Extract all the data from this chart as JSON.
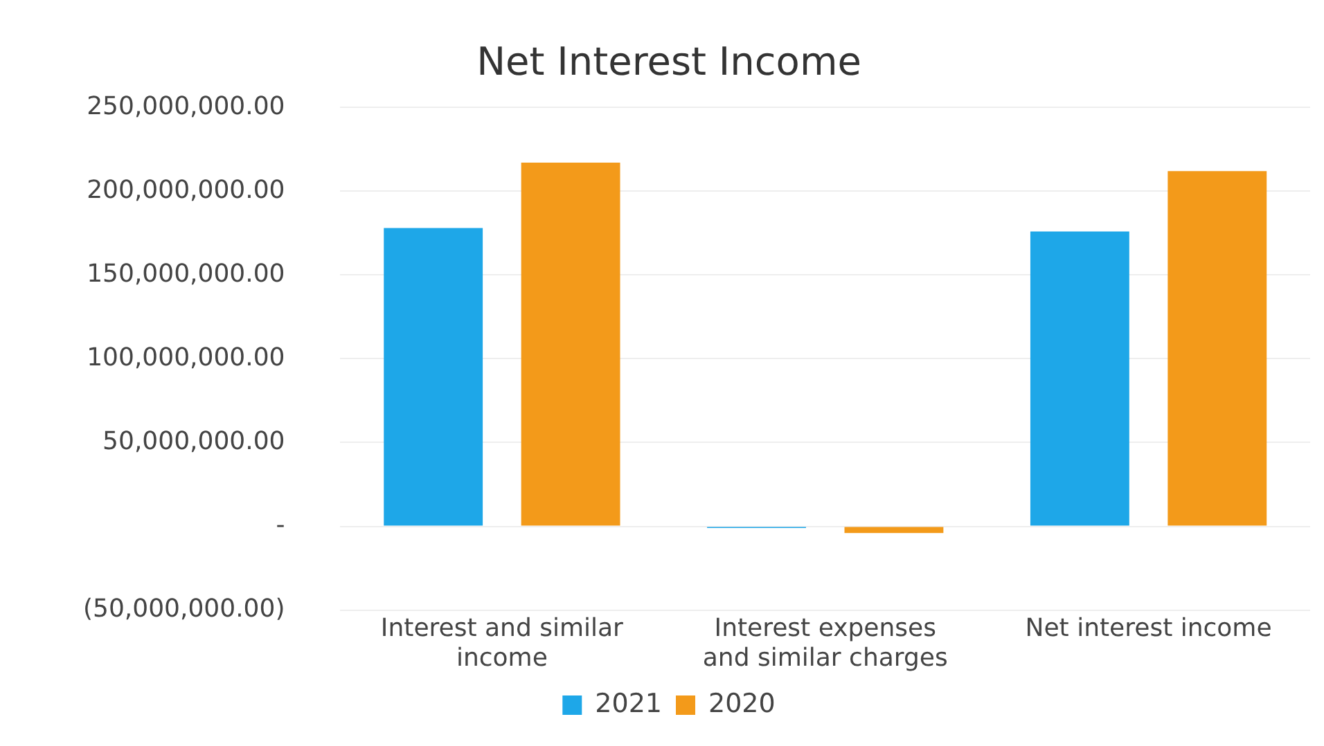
{
  "chart_data": {
    "type": "bar",
    "title": "Net Interest Income",
    "categories": [
      "Interest and similar income",
      "Interest expenses and similar charges",
      "Net interest income"
    ],
    "series": [
      {
        "name": "2021",
        "color": "#1ea7e8",
        "values": [
          178000000,
          -1000000,
          176000000
        ]
      },
      {
        "name": "2020",
        "color": "#f39a1a",
        "values": [
          217000000,
          -4000000,
          212000000
        ]
      }
    ],
    "ylim": [
      -50000000,
      250000000
    ],
    "yticks": [
      {
        "value": -50000000,
        "label": "(50,000,000.00)"
      },
      {
        "value": 0,
        "label": "-"
      },
      {
        "value": 50000000,
        "label": "50,000,000.00"
      },
      {
        "value": 100000000,
        "label": "100,000,000.00"
      },
      {
        "value": 150000000,
        "label": "150,000,000.00"
      },
      {
        "value": 200000000,
        "label": "200,000,000.00"
      },
      {
        "value": 250000000,
        "label": "250,000,000.00"
      }
    ],
    "grid": "y",
    "legend": "bottom"
  }
}
